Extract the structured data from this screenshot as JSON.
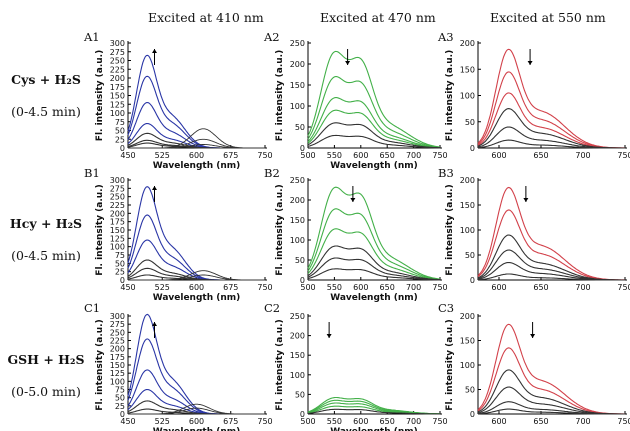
{
  "header": {
    "col1": "Excited at 410 nm",
    "col2": "Excited at 470 nm",
    "col3": "Excited at 550 nm"
  },
  "rows": [
    {
      "title": "Cys + H₂S",
      "subtitle": "(0-4.5 min)"
    },
    {
      "title": "Hcy + H₂S",
      "subtitle": "(0-4.5 min)"
    },
    {
      "title": "GSH + H₂S",
      "subtitle": "(0-5.0 min)"
    }
  ],
  "colors": {
    "blue": "#2a36a6",
    "green": "#43b049",
    "red": "#d2414a",
    "gray": "#333333",
    "axis": "#000000"
  },
  "chart_data": [
    {
      "panel": "A1",
      "type": "line",
      "xlabel": "Wavelength (nm)",
      "ylabel": "Fl. intensity (a.u.)",
      "xlim": [
        450,
        750
      ],
      "ylim": [
        0,
        300
      ],
      "xticks": [
        450,
        525,
        600,
        675,
        750
      ],
      "yticks": [
        0,
        25,
        50,
        75,
        100,
        125,
        150,
        175,
        200,
        225,
        250,
        275,
        300
      ],
      "arrow": "up",
      "arrow_x": 508,
      "peaks": [
        {
          "c": "blue",
          "h": 265
        },
        {
          "c": "blue",
          "h": 205
        },
        {
          "c": "blue",
          "h": 130
        },
        {
          "c": "blue",
          "h": 70
        },
        {
          "c": "gray",
          "h": 42
        },
        {
          "c": "gray",
          "h": 22
        },
        {
          "c": "gray",
          "h": 14
        }
      ],
      "sub": [
        {
          "c": "gray",
          "h": 55
        },
        {
          "c": "gray",
          "h": 25
        },
        {
          "c": "gray",
          "h": 10
        }
      ],
      "sub_x": 615
    },
    {
      "panel": "A2",
      "type": "line",
      "xlabel": "Wavelength (nm)",
      "ylabel": "Fl. intensity (a.u.)",
      "xlim": [
        500,
        750
      ],
      "ylim": [
        0,
        250
      ],
      "xticks": [
        500,
        550,
        600,
        650,
        700,
        750
      ],
      "yticks": [
        0,
        50,
        100,
        150,
        200,
        250
      ],
      "arrow": "down",
      "arrow_x": 575,
      "peaks": [
        {
          "c": "green",
          "h": 230
        },
        {
          "c": "green",
          "h": 170
        },
        {
          "c": "green",
          "h": 120
        },
        {
          "c": "green",
          "h": 90
        },
        {
          "c": "gray",
          "h": 60
        },
        {
          "c": "gray",
          "h": 30
        }
      ]
    },
    {
      "panel": "A3",
      "type": "line",
      "xlabel": "",
      "ylabel": "Fl. intensity (a.u.)",
      "xlim": [
        575,
        750
      ],
      "ylim": [
        0,
        200
      ],
      "xticks": [
        600,
        650,
        700,
        750
      ],
      "yticks": [
        0,
        50,
        100,
        150,
        200
      ],
      "arrow": "down",
      "arrow_x": 637,
      "peaks": [
        {
          "c": "red",
          "h": 188
        },
        {
          "c": "red",
          "h": 145
        },
        {
          "c": "red",
          "h": 105
        },
        {
          "c": "gray",
          "h": 75
        },
        {
          "c": "gray",
          "h": 40
        },
        {
          "c": "gray",
          "h": 15
        }
      ]
    },
    {
      "panel": "B1",
      "type": "line",
      "xlabel": "Wavelength (nm)",
      "ylabel": "Fl. intensity (a.u.)",
      "xlim": [
        450,
        750
      ],
      "ylim": [
        0,
        300
      ],
      "xticks": [
        450,
        525,
        600,
        675,
        750
      ],
      "yticks": [
        0,
        25,
        50,
        75,
        100,
        125,
        150,
        175,
        200,
        225,
        250,
        275,
        300
      ],
      "arrow": "up",
      "arrow_x": 508,
      "peaks": [
        {
          "c": "blue",
          "h": 280
        },
        {
          "c": "blue",
          "h": 195
        },
        {
          "c": "blue",
          "h": 120
        },
        {
          "c": "gray",
          "h": 60
        },
        {
          "c": "gray",
          "h": 35
        },
        {
          "c": "gray",
          "h": 15
        }
      ],
      "sub": [
        {
          "c": "gray",
          "h": 28
        },
        {
          "c": "gray",
          "h": 15
        }
      ],
      "sub_x": 615
    },
    {
      "panel": "B2",
      "type": "line",
      "xlabel": "Wavelength (nm)",
      "ylabel": "Fl. intensity (a.u.)",
      "xlim": [
        500,
        750
      ],
      "ylim": [
        0,
        250
      ],
      "xticks": [
        500,
        550,
        600,
        650,
        700,
        750
      ],
      "yticks": [
        0,
        50,
        100,
        150,
        200,
        250
      ],
      "arrow": "down",
      "arrow_x": 585,
      "peaks": [
        {
          "c": "green",
          "h": 232
        },
        {
          "c": "green",
          "h": 178
        },
        {
          "c": "green",
          "h": 128
        },
        {
          "c": "gray",
          "h": 85
        },
        {
          "c": "gray",
          "h": 55
        },
        {
          "c": "gray",
          "h": 28
        }
      ]
    },
    {
      "panel": "B3",
      "type": "line",
      "xlabel": "",
      "ylabel": "Fl. intensity (a.u.)",
      "xlim": [
        575,
        750
      ],
      "ylim": [
        0,
        200
      ],
      "xticks": [
        600,
        650,
        700,
        750
      ],
      "yticks": [
        0,
        50,
        100,
        150,
        200
      ],
      "arrow": "down",
      "arrow_x": 632,
      "peaks": [
        {
          "c": "red",
          "h": 185
        },
        {
          "c": "red",
          "h": 140
        },
        {
          "c": "gray",
          "h": 90
        },
        {
          "c": "gray",
          "h": 60
        },
        {
          "c": "gray",
          "h": 35
        },
        {
          "c": "gray",
          "h": 12
        }
      ]
    },
    {
      "panel": "C1",
      "type": "line",
      "xlabel": "Wavelength (nm)",
      "ylabel": "Fl. intensity (a.u.)",
      "xlim": [
        450,
        750
      ],
      "ylim": [
        0,
        300
      ],
      "xticks": [
        450,
        525,
        600,
        675,
        750
      ],
      "yticks": [
        0,
        25,
        50,
        75,
        100,
        125,
        150,
        175,
        200,
        225,
        250,
        275,
        300
      ],
      "arrow": "up",
      "arrow_x": 508,
      "peaks": [
        {
          "c": "blue",
          "h": 305
        },
        {
          "c": "blue",
          "h": 230
        },
        {
          "c": "blue",
          "h": 135
        },
        {
          "c": "blue",
          "h": 75
        },
        {
          "c": "gray",
          "h": 40
        },
        {
          "c": "gray",
          "h": 15
        }
      ],
      "sub": [
        {
          "c": "gray",
          "h": 30
        },
        {
          "c": "gray",
          "h": 18
        }
      ],
      "sub_x": 600
    },
    {
      "panel": "C2",
      "type": "line",
      "xlabel": "Wavelength (nm)",
      "ylabel": "Fl. intensity (a.u.)",
      "xlim": [
        500,
        750
      ],
      "ylim": [
        0,
        250
      ],
      "xticks": [
        500,
        550,
        600,
        650,
        700,
        750
      ],
      "yticks": [
        0,
        50,
        100,
        150,
        200,
        250
      ],
      "arrow": "down",
      "arrow_x": 540,
      "peaks": [
        {
          "c": "green",
          "h": 42
        },
        {
          "c": "green",
          "h": 35
        },
        {
          "c": "green",
          "h": 28
        },
        {
          "c": "green",
          "h": 20
        },
        {
          "c": "gray",
          "h": 12
        }
      ]
    },
    {
      "panel": "C3",
      "type": "line",
      "xlabel": "",
      "ylabel": "Fl. intensity (a.u.)",
      "xlim": [
        575,
        750
      ],
      "ylim": [
        0,
        200
      ],
      "xticks": [
        600,
        650,
        700,
        750
      ],
      "yticks": [
        0,
        50,
        100,
        150,
        200
      ],
      "arrow": "down",
      "arrow_x": 640,
      "peaks": [
        {
          "c": "red",
          "h": 183
        },
        {
          "c": "red",
          "h": 135
        },
        {
          "c": "gray",
          "h": 90
        },
        {
          "c": "gray",
          "h": 55
        },
        {
          "c": "gray",
          "h": 25
        },
        {
          "c": "gray",
          "h": 10
        }
      ]
    }
  ]
}
